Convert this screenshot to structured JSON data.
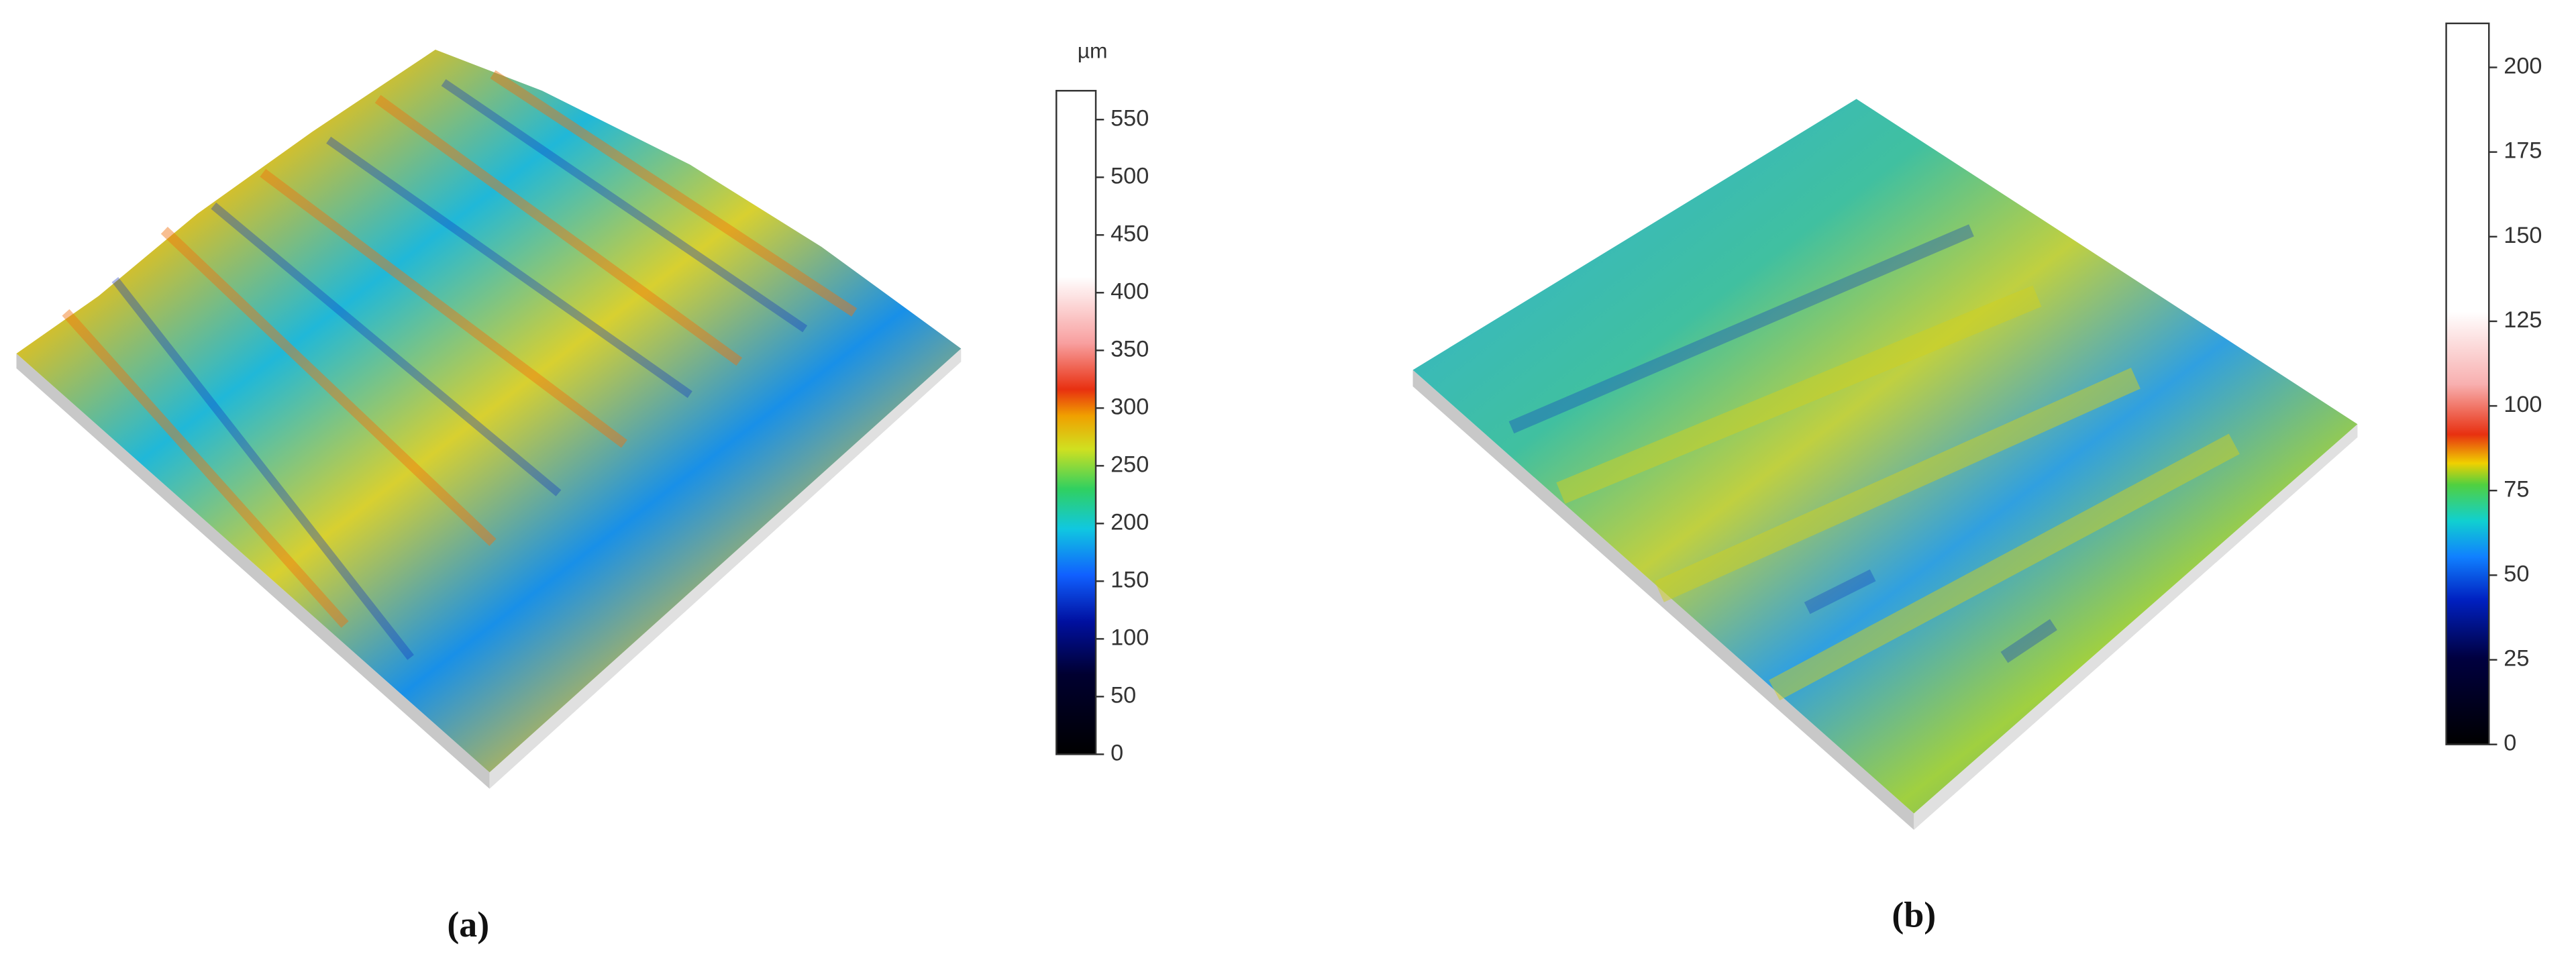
{
  "panels": [
    {
      "label": "(a)",
      "colorbar": {
        "unit": "µm",
        "lim": [
          0,
          575
        ],
        "ticks": [
          0,
          50,
          100,
          150,
          200,
          250,
          300,
          350,
          400,
          450,
          500,
          550
        ]
      }
    },
    {
      "label": "(b)",
      "colorbar": {
        "lim": [
          0,
          213
        ],
        "ticks": [
          0,
          25,
          50,
          75,
          100,
          125,
          150,
          175,
          200
        ]
      }
    }
  ]
}
